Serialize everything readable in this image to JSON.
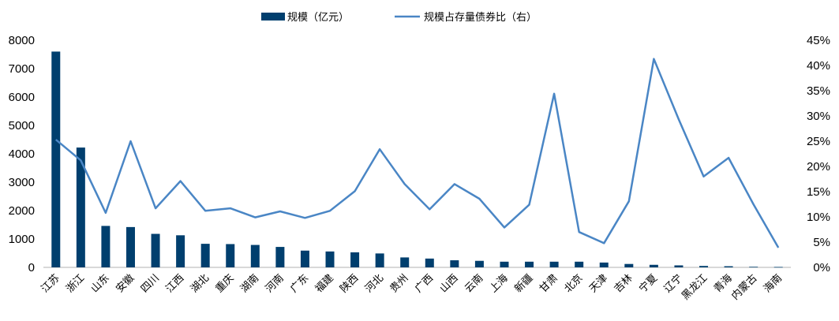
{
  "chart_data": {
    "type": "bar",
    "categories": [
      "江苏",
      "浙江",
      "山东",
      "安徽",
      "四川",
      "江西",
      "湖北",
      "重庆",
      "湖南",
      "河南",
      "广东",
      "福建",
      "陕西",
      "河北",
      "贵州",
      "广西",
      "山西",
      "云南",
      "上海",
      "新疆",
      "甘肃",
      "北京",
      "天津",
      "吉林",
      "宁夏",
      "辽宁",
      "黑龙江",
      "青海",
      "内蒙古",
      "海南"
    ],
    "series": [
      {
        "name": "规模（亿元）",
        "type": "bar",
        "axis": "left",
        "color": "#003f6e",
        "values": [
          7600,
          4220,
          1460,
          1420,
          1180,
          1130,
          830,
          820,
          790,
          720,
          590,
          560,
          530,
          490,
          350,
          310,
          250,
          230,
          200,
          200,
          200,
          200,
          170,
          120,
          90,
          70,
          50,
          40,
          20,
          15
        ]
      },
      {
        "name": "规模占存量债券比（右）",
        "type": "line",
        "axis": "right",
        "color": "#4a86c5",
        "values": [
          25.3,
          21.2,
          10.8,
          25.0,
          11.7,
          17.1,
          11.2,
          11.7,
          9.9,
          11.1,
          9.8,
          11.2,
          15.1,
          23.4,
          16.5,
          11.5,
          16.5,
          13.6,
          7.9,
          12.4,
          34.4,
          7.0,
          4.8,
          13.1,
          41.3,
          29.3,
          18.0,
          21.7,
          12.5,
          3.9
        ]
      }
    ],
    "yleft": {
      "min": 0,
      "max": 8000,
      "ticks": [
        0,
        1000,
        2000,
        3000,
        4000,
        5000,
        6000,
        7000,
        8000
      ]
    },
    "yright": {
      "min": 0,
      "max": 45,
      "ticks": [
        "0%",
        "5%",
        "10%",
        "15%",
        "20%",
        "25%",
        "30%",
        "35%",
        "40%",
        "45%"
      ]
    },
    "legend": "top-center",
    "grid": false
  }
}
